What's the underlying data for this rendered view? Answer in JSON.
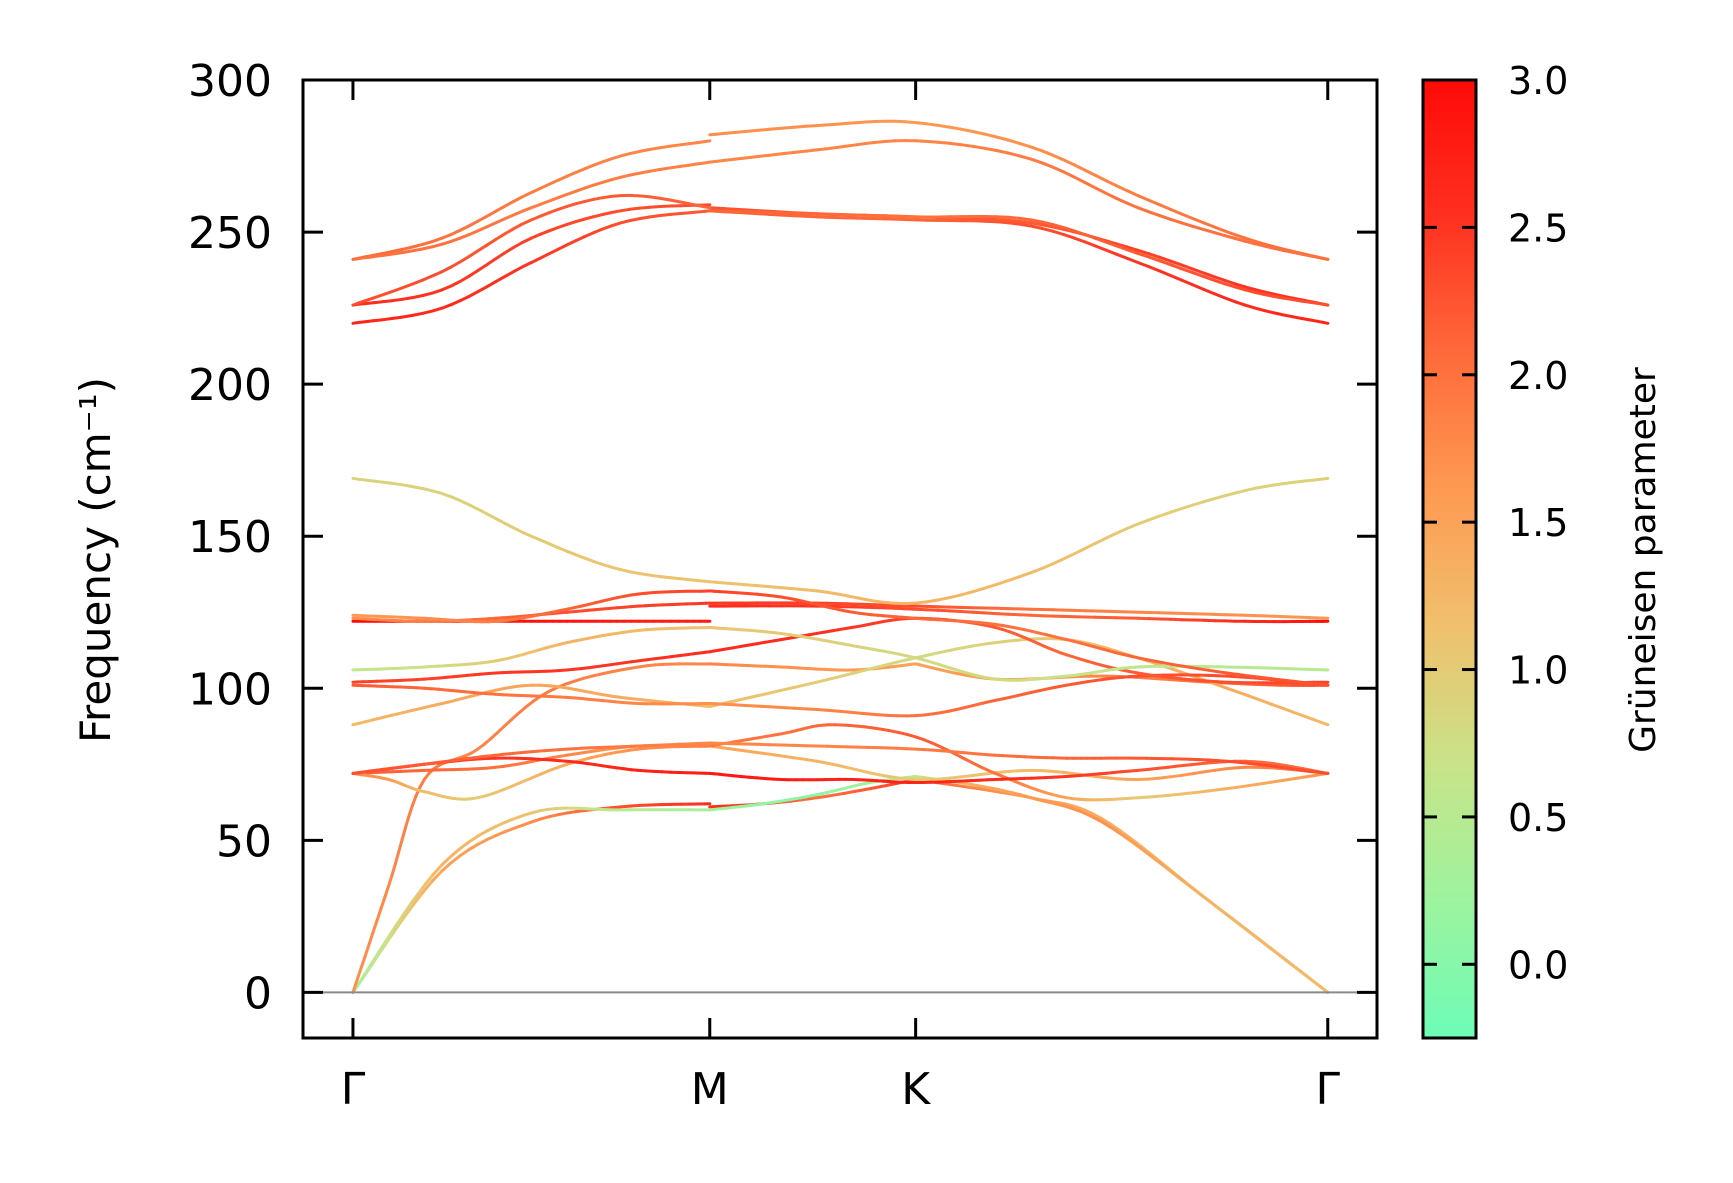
{
  "chart_data": {
    "type": "line",
    "title": "",
    "xlabel": "",
    "ylabel": "Frequency (cm⁻¹)",
    "ylim": [
      -15,
      300
    ],
    "yticks": [
      "0",
      "50",
      "100",
      "150",
      "200",
      "250",
      "300"
    ],
    "xticks": [
      {
        "label": "Γ",
        "pos": 0
      },
      {
        "label": "M",
        "pos": 1
      },
      {
        "label": "K",
        "pos": 1.577
      },
      {
        "label": "Γ",
        "pos": 2.732
      }
    ],
    "xlim": [
      -0.14,
      2.87
    ],
    "grid": false,
    "colorbar": {
      "label": "Grüneisen parameter",
      "range": [
        -0.25,
        3.0
      ],
      "ticks": [
        "0.0",
        "0.5",
        "1.0",
        "1.5",
        "2.0",
        "2.5",
        "3.0"
      ],
      "colors": [
        "#6dfdb6",
        "#9df39e",
        "#c8e388",
        "#f0c06d",
        "#fe9a52",
        "#ff6a3a",
        "#ff3020",
        "#ff0a08"
      ]
    },
    "zero_line": 0,
    "series": [
      {
        "x": [
          0,
          0.25,
          0.5,
          0.75,
          1.0
        ],
        "y": [
          0,
          40,
          56,
          61,
          62
        ],
        "g": [
          0.2,
          1.5,
          1.7,
          2.3,
          2.6
        ]
      },
      {
        "x": [
          1.0,
          1.15,
          1.3,
          1.45,
          1.577
        ],
        "y": [
          61,
          62,
          64,
          67,
          70
        ],
        "g": [
          2.6,
          2.4,
          2.0,
          2.2,
          2.5
        ]
      },
      {
        "x": [
          1.577,
          1.9,
          2.1,
          2.4,
          2.732
        ],
        "y": [
          70,
          64,
          57,
          30,
          0
        ],
        "g": [
          2.2,
          1.5,
          1.4,
          1.2,
          1.2
        ]
      },
      {
        "x": [
          0,
          0.25,
          0.5,
          0.75,
          1.0
        ],
        "y": [
          0,
          42,
          59,
          60,
          60
        ],
        "g": [
          0.2,
          1.3,
          1.1,
          0.5,
          0.3
        ]
      },
      {
        "x": [
          1.0,
          1.15,
          1.3,
          1.45,
          1.577
        ],
        "y": [
          60,
          62,
          65,
          69,
          71
        ],
        "g": [
          0.3,
          0.1,
          0.0,
          0.3,
          0.5
        ]
      },
      {
        "x": [
          1.577,
          1.75,
          1.9,
          2.1,
          2.4,
          2.732
        ],
        "y": [
          71,
          68,
          64,
          56,
          30,
          0
        ],
        "g": [
          0.6,
          1.4,
          1.6,
          1.7,
          1.3,
          1.2
        ]
      },
      {
        "x": [
          0,
          0.1,
          0.2,
          0.35,
          0.55,
          0.8,
          1.0
        ],
        "y": [
          0,
          35,
          70,
          80,
          99,
          107,
          108
        ],
        "g": [
          1.7,
          1.8,
          1.9,
          1.8,
          1.9,
          1.8,
          1.8
        ]
      },
      {
        "x": [
          1.0,
          1.2,
          1.4,
          1.577
        ],
        "y": [
          108,
          107,
          106,
          108
        ],
        "g": [
          1.8,
          1.7,
          1.6,
          1.5
        ]
      },
      {
        "x": [
          1.577,
          1.8,
          2.1,
          2.4,
          2.6,
          2.732
        ],
        "y": [
          108,
          103,
          104,
          102,
          101,
          101
        ],
        "g": [
          1.5,
          1.6,
          1.8,
          2.0,
          2.2,
          2.4
        ]
      },
      {
        "x": [
          0,
          0.2,
          0.4,
          0.6,
          0.8,
          1.0
        ],
        "y": [
          72,
          73,
          74,
          78,
          81,
          81
        ],
        "g": [
          2.2,
          2.1,
          2.0,
          1.8,
          1.6,
          1.5
        ]
      },
      {
        "x": [
          1.0,
          1.3,
          1.577,
          1.9,
          2.2,
          2.5,
          2.732
        ],
        "y": [
          81,
          76,
          70,
          73,
          70,
          74,
          72
        ],
        "g": [
          1.5,
          1.3,
          1.0,
          1.2,
          1.5,
          1.8,
          2.1
        ]
      },
      {
        "x": [
          0,
          0.1,
          0.2,
          0.35,
          0.6,
          0.8,
          1.0
        ],
        "y": [
          72,
          70,
          66,
          64,
          75,
          80,
          81
        ],
        "g": [
          1.8,
          1.6,
          1.2,
          1.0,
          1.4,
          1.7,
          1.9
        ]
      },
      {
        "x": [
          1.0,
          1.2,
          1.35,
          1.577,
          1.8,
          2.0,
          2.2,
          2.45,
          2.732
        ],
        "y": [
          81,
          85,
          88,
          84,
          72,
          64,
          64,
          67,
          72
        ],
        "g": [
          1.9,
          2.0,
          2.1,
          2.2,
          2.0,
          1.5,
          1.0,
          1.3,
          1.7
        ]
      },
      {
        "x": [
          0,
          0.2,
          0.4,
          0.6,
          0.8,
          1.0
        ],
        "y": [
          72,
          75,
          77,
          76,
          73,
          72
        ],
        "g": [
          2.3,
          2.4,
          2.5,
          2.6,
          2.7,
          2.8
        ]
      },
      {
        "x": [
          1.0,
          1.2,
          1.4,
          1.577,
          1.8,
          2.0,
          2.2,
          2.5,
          2.732
        ],
        "y": [
          72,
          70,
          70,
          69,
          70,
          71,
          73,
          76,
          72
        ],
        "g": [
          2.8,
          2.8,
          2.7,
          2.7,
          2.6,
          2.5,
          2.3,
          2.1,
          2.0
        ]
      },
      {
        "x": [
          0,
          0.2,
          0.4,
          0.6,
          0.8,
          1.0
        ],
        "y": [
          72,
          75,
          78,
          80,
          81,
          82
        ],
        "g": [
          2.3,
          2.2,
          2.1,
          2.0,
          1.9,
          1.8
        ]
      },
      {
        "x": [
          1.0,
          1.3,
          1.577,
          1.8,
          2.0,
          2.2,
          2.45,
          2.732
        ],
        "y": [
          82,
          81,
          80,
          78,
          77,
          77,
          76,
          72
        ],
        "g": [
          1.8,
          1.8,
          1.9,
          2.0,
          2.1,
          2.2,
          2.3,
          2.3
        ]
      },
      {
        "x": [
          0,
          0.25,
          0.5,
          0.75,
          1.0
        ],
        "y": [
          88,
          95,
          101,
          97,
          94
        ],
        "g": [
          1.2,
          1.4,
          1.5,
          1.4,
          1.2
        ]
      },
      {
        "x": [
          1.0,
          1.3,
          1.577,
          1.8,
          2.0,
          2.2,
          2.45,
          2.732
        ],
        "y": [
          94,
          102,
          110,
          115,
          116,
          110,
          100,
          88
        ],
        "g": [
          1.2,
          1.0,
          0.8,
          0.9,
          1.1,
          1.3,
          1.4,
          1.2
        ]
      },
      {
        "x": [
          0,
          0.2,
          0.4,
          0.6,
          0.8,
          1.0
        ],
        "y": [
          101,
          100,
          98,
          97,
          95,
          95
        ],
        "g": [
          2.2,
          2.1,
          2.0,
          1.9,
          1.8,
          1.7
        ]
      },
      {
        "x": [
          1.0,
          1.3,
          1.577,
          1.8,
          2.0,
          2.2,
          2.45,
          2.732
        ],
        "y": [
          95,
          93,
          91,
          96,
          101,
          104,
          104,
          101
        ],
        "g": [
          1.7,
          1.8,
          2.0,
          2.1,
          2.2,
          2.3,
          2.3,
          2.3
        ]
      },
      {
        "x": [
          0,
          0.2,
          0.4,
          0.6,
          0.8,
          1.0
        ],
        "y": [
          102,
          103,
          105,
          106,
          109,
          112
        ],
        "g": [
          2.4,
          2.4,
          2.5,
          2.5,
          2.5,
          2.6
        ]
      },
      {
        "x": [
          1.0,
          1.2,
          1.4,
          1.577,
          1.8,
          2.0,
          2.2,
          2.45,
          2.732
        ],
        "y": [
          112,
          116,
          120,
          123,
          120,
          111,
          105,
          102,
          102
        ],
        "g": [
          2.6,
          2.6,
          2.5,
          2.4,
          2.2,
          2.1,
          2.2,
          2.3,
          2.4
        ]
      },
      {
        "x": [
          0,
          0.2,
          0.4,
          0.6,
          0.8,
          1.0
        ],
        "y": [
          106,
          107,
          109,
          115,
          119,
          120
        ],
        "g": [
          0.6,
          0.7,
          1.0,
          1.3,
          1.2,
          1.1
        ]
      },
      {
        "x": [
          1.0,
          1.2,
          1.4,
          1.577,
          1.8,
          2.0,
          2.2,
          2.45,
          2.732
        ],
        "y": [
          120,
          118,
          114,
          110,
          103,
          104,
          107,
          107,
          106
        ],
        "g": [
          1.1,
          1.0,
          0.9,
          0.8,
          0.8,
          0.7,
          0.6,
          0.5,
          0.5
        ]
      },
      {
        "x": [
          0,
          0.2,
          0.4,
          0.6,
          0.8,
          1.0
        ],
        "y": [
          122,
          122,
          122,
          122,
          122,
          122
        ],
        "g": [
          3.0,
          3.0,
          2.9,
          2.9,
          2.8,
          2.8
        ]
      },
      {
        "x": [
          1.0,
          1.3,
          1.577,
          1.9,
          2.2,
          2.5,
          2.732
        ],
        "y": [
          127,
          127,
          126,
          124,
          123,
          122,
          122
        ],
        "g": [
          2.6,
          2.5,
          2.3,
          2.1,
          2.2,
          2.6,
          3.0
        ]
      },
      {
        "x": [
          0,
          0.2,
          0.4,
          0.6,
          0.8,
          1.0
        ],
        "y": [
          123,
          122,
          123,
          125,
          127,
          128
        ],
        "g": [
          1.7,
          1.9,
          2.1,
          2.3,
          2.4,
          2.5
        ]
      },
      {
        "x": [
          1.0,
          1.3,
          1.577,
          1.9,
          2.2,
          2.5,
          2.732
        ],
        "y": [
          128,
          128,
          127,
          126,
          125,
          124,
          123
        ],
        "g": [
          2.5,
          2.4,
          2.3,
          2.0,
          1.8,
          1.7,
          1.6
        ]
      },
      {
        "x": [
          0,
          0.2,
          0.4,
          0.6,
          0.8,
          1.0
        ],
        "y": [
          124,
          123,
          122,
          126,
          131,
          132
        ],
        "g": [
          1.6,
          1.7,
          1.9,
          2.1,
          2.3,
          2.4
        ]
      },
      {
        "x": [
          1.0,
          1.2,
          1.4,
          1.577,
          1.8,
          2.0,
          2.2,
          2.45,
          2.732
        ],
        "y": [
          132,
          130,
          125,
          123,
          121,
          116,
          110,
          105,
          101
        ],
        "g": [
          2.4,
          2.3,
          2.2,
          2.1,
          2.0,
          2.0,
          2.1,
          2.2,
          2.3
        ]
      },
      {
        "x": [
          0,
          0.25,
          0.5,
          0.75,
          1.0
        ],
        "y": [
          169,
          164,
          150,
          139,
          135
        ],
        "g": [
          0.9,
          0.9,
          1.0,
          1.1,
          1.1
        ]
      },
      {
        "x": [
          1.0,
          1.3,
          1.577,
          1.9,
          2.2,
          2.5,
          2.732
        ],
        "y": [
          135,
          132,
          128,
          138,
          154,
          165,
          169
        ],
        "g": [
          1.1,
          1.2,
          1.3,
          1.2,
          1.0,
          0.9,
          0.9
        ]
      },
      {
        "x": [
          0,
          0.25,
          0.5,
          0.75,
          1.0
        ],
        "y": [
          220,
          225,
          240,
          253,
          257
        ],
        "g": [
          2.7,
          2.6,
          2.5,
          2.3,
          2.2
        ]
      },
      {
        "x": [
          1.0,
          1.3,
          1.577,
          1.9,
          2.2,
          2.5,
          2.732
        ],
        "y": [
          257,
          255,
          254,
          252,
          240,
          226,
          220
        ],
        "g": [
          2.2,
          2.1,
          2.1,
          2.3,
          2.5,
          2.6,
          2.7
        ]
      },
      {
        "x": [
          0,
          0.25,
          0.5,
          0.75,
          1.0
        ],
        "y": [
          226,
          231,
          248,
          257,
          259
        ],
        "g": [
          2.6,
          2.5,
          2.4,
          2.3,
          2.3
        ]
      },
      {
        "x": [
          1.0,
          1.3,
          1.577,
          1.9,
          2.2,
          2.5,
          2.732
        ],
        "y": [
          258,
          256,
          255,
          253,
          244,
          232,
          226
        ],
        "g": [
          2.3,
          2.2,
          2.2,
          2.2,
          2.4,
          2.5,
          2.6
        ]
      },
      {
        "x": [
          0,
          0.25,
          0.5,
          0.75,
          1.0
        ],
        "y": [
          226,
          237,
          254,
          262,
          258
        ],
        "g": [
          2.3,
          2.3,
          2.2,
          2.2,
          2.1
        ]
      },
      {
        "x": [
          1.0,
          1.3,
          1.577,
          1.9,
          2.2,
          2.5,
          2.732
        ],
        "y": [
          257,
          256,
          255,
          254,
          243,
          231,
          226
        ],
        "g": [
          2.1,
          2.1,
          2.0,
          2.1,
          2.2,
          2.3,
          2.3
        ]
      },
      {
        "x": [
          0,
          0.25,
          0.5,
          0.75,
          1.0
        ],
        "y": [
          241,
          248,
          263,
          275,
          280
        ],
        "g": [
          2.1,
          2.0,
          1.9,
          1.8,
          1.8
        ]
      },
      {
        "x": [
          1.0,
          1.3,
          1.577,
          1.9,
          2.2,
          2.5,
          2.732
        ],
        "y": [
          282,
          285,
          286,
          278,
          262,
          248,
          241
        ],
        "g": [
          1.7,
          1.7,
          1.6,
          1.7,
          1.9,
          2.0,
          2.1
        ]
      },
      {
        "x": [
          0,
          0.25,
          0.5,
          0.75,
          1.0
        ],
        "y": [
          241,
          246,
          258,
          268,
          273
        ],
        "g": [
          2.0,
          2.0,
          1.9,
          1.9,
          1.8
        ]
      },
      {
        "x": [
          1.0,
          1.3,
          1.577,
          1.9,
          2.2,
          2.5,
          2.732
        ],
        "y": [
          273,
          277,
          280,
          274,
          258,
          247,
          241
        ],
        "g": [
          1.8,
          1.8,
          1.8,
          1.9,
          2.0,
          2.0,
          2.0
        ]
      }
    ]
  }
}
